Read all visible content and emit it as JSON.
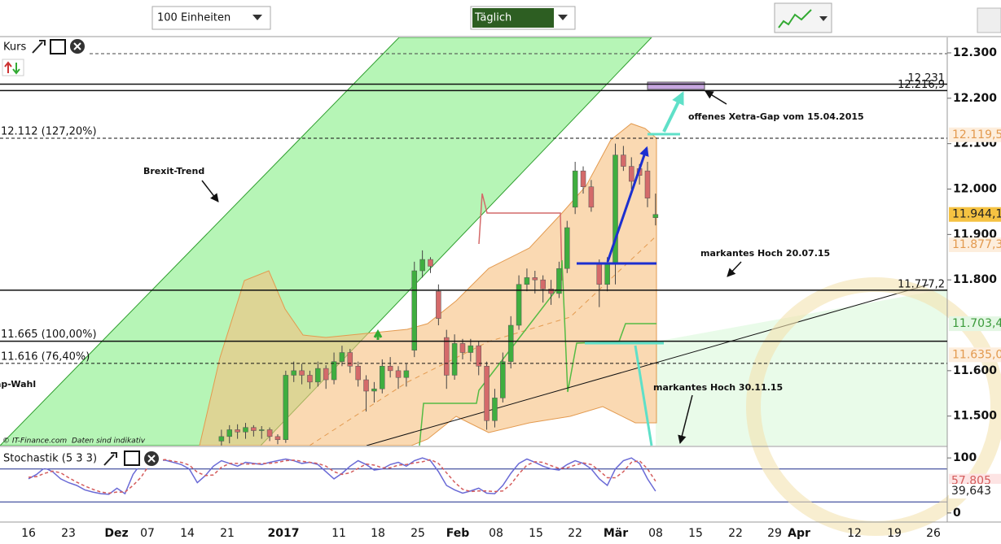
{
  "toolbar": {
    "units": "100 Einheiten",
    "interval": "Täglich"
  },
  "footer": {
    "copyright": "© IT-Finance.com",
    "disclaimer": "Daten sind indikativ"
  },
  "chart_data": [
    {
      "type": "candlestick",
      "pane_label": "Kurs",
      "up_color": "#3fae3f",
      "down_color": "#d46a6a",
      "ylim": [
        11435,
        12334
      ],
      "yticks": [
        {
          "value": 12300,
          "label": "12.300"
        },
        {
          "value": 12200,
          "label": "12.200"
        },
        {
          "value": 12100,
          "label": "12.100"
        },
        {
          "value": 12000,
          "label": "12.000"
        },
        {
          "value": 11900,
          "label": "11.900"
        },
        {
          "value": 11800,
          "label": "11.800"
        },
        {
          "value": 11600,
          "label": "11.600"
        },
        {
          "value": 11500,
          "label": "11.500"
        }
      ],
      "xtick_labels": [
        "16",
        "23",
        "Dez",
        "07",
        "14",
        "21",
        "2017",
        "11",
        "18",
        "25",
        "Feb",
        "08",
        "15",
        "22",
        "Mär",
        "08",
        "15",
        "22",
        "29",
        "Apr",
        "12",
        "19",
        "26"
      ],
      "open": [
        11445,
        11455,
        11470,
        11465,
        11475,
        11468,
        11470,
        11455,
        11448,
        11590,
        11600,
        11590,
        11575,
        11605,
        11580,
        11620,
        11640,
        11610,
        11580,
        11555,
        11560,
        11610,
        11600,
        11585,
        11645,
        11820,
        11845,
        11775,
        11673,
        11590,
        11660,
        11640,
        11655,
        11610,
        11490,
        11540,
        11620,
        11700,
        11790,
        11805,
        11800,
        11780,
        11770,
        11825,
        11960,
        12040,
        12005,
        11835,
        11790,
        11835,
        12075,
        12050,
        12045,
        12040,
        11937
      ],
      "high": [
        11470,
        11480,
        11482,
        11485,
        11480,
        11478,
        11475,
        11460,
        11600,
        11620,
        11615,
        11600,
        11620,
        11612,
        11640,
        11655,
        11648,
        11620,
        11590,
        11575,
        11625,
        11630,
        11610,
        11615,
        11840,
        11865,
        11850,
        11790,
        11690,
        11680,
        11670,
        11670,
        11665,
        11620,
        11560,
        11640,
        11720,
        11810,
        11825,
        11820,
        11810,
        11800,
        11840,
        11930,
        12060,
        12050,
        12020,
        11845,
        11850,
        12100,
        12095,
        12070,
        12055,
        12060,
        11990
      ],
      "low": [
        11435,
        11440,
        11450,
        11450,
        11455,
        11450,
        11445,
        11438,
        11441,
        11575,
        11570,
        11560,
        11565,
        11560,
        11570,
        11610,
        11595,
        11565,
        11510,
        11530,
        11550,
        11585,
        11560,
        11565,
        11630,
        11805,
        11815,
        11700,
        11560,
        11580,
        11625,
        11620,
        11590,
        11470,
        11475,
        11530,
        11605,
        11690,
        11775,
        11770,
        11750,
        11745,
        11760,
        11815,
        11945,
        11990,
        11950,
        11740,
        11775,
        11790,
        12040,
        12000,
        12010,
        11960,
        11920
      ],
      "close": [
        11455,
        11470,
        11465,
        11475,
        11468,
        11470,
        11455,
        11448,
        11590,
        11600,
        11590,
        11575,
        11605,
        11580,
        11620,
        11640,
        11610,
        11580,
        11555,
        11560,
        11610,
        11600,
        11585,
        11600,
        11820,
        11845,
        11830,
        11715,
        11590,
        11660,
        11640,
        11655,
        11610,
        11490,
        11540,
        11620,
        11700,
        11790,
        11805,
        11800,
        11780,
        11770,
        11825,
        11915,
        12040,
        12005,
        11960,
        11790,
        11835,
        12075,
        12050,
        12017,
        12030,
        11980,
        11944.1
      ],
      "levels": [
        {
          "value": 12231,
          "label": "12.231",
          "side": "right",
          "dashed": false
        },
        {
          "value": 12216.9,
          "label": "12.216,9",
          "side": "right",
          "dashed": false
        },
        {
          "value": 12112,
          "label": "12.112 (127,20%)",
          "side": "left",
          "dashed": true
        },
        {
          "value": 11777.2,
          "label": "11.777,2",
          "side": "right",
          "dashed": false
        },
        {
          "value": 11665,
          "label": "11.665 (100,00%)",
          "side": "left",
          "dashed": false
        },
        {
          "value": 11616,
          "label": "11.616 (76,40%)",
          "side": "left",
          "dashed": true
        }
      ],
      "value_boxes": [
        {
          "value": 12119.5,
          "label": "12.119,5",
          "color": "#e39a4f",
          "bg": "#fdeedd"
        },
        {
          "value": 11944.1,
          "label": "11.944,1",
          "color": "#222222",
          "bg": "#f5c242"
        },
        {
          "value": 11877.3,
          "label": "11.877,3",
          "color": "#e39a4f",
          "bg": "#fdeedd"
        },
        {
          "value": 11703.4,
          "label": "11.703,4",
          "color": "#3a9a3a",
          "bg": "#e4f7e4"
        },
        {
          "value": 11635,
          "label": "11.635,0",
          "color": "#e39a4f",
          "bg": "#fdeedd"
        }
      ],
      "annotations": [
        "Brexit-Trend",
        "offenes Xetra-Gap vom 15.04.2015",
        "markantes Hoch 20.07.15",
        "markantes Hoch 30.11.15",
        "ap-Wahl"
      ]
    },
    {
      "type": "line",
      "pane_label": "Stochastik (5 3 3)",
      "ylim": [
        -15,
        115
      ],
      "yticks": [
        100,
        0
      ],
      "hlines": [
        80,
        20
      ],
      "series": [
        {
          "color": "#6a6ad6",
          "dashed": false,
          "values": [
            62,
            70,
            82,
            75,
            62,
            55,
            50,
            42,
            38,
            35,
            34,
            45,
            35,
            70,
            90,
            100,
            95,
            96,
            92,
            88,
            80,
            55,
            68,
            85,
            95,
            90,
            85,
            92,
            90,
            88,
            92,
            95,
            98,
            95,
            90,
            92,
            88,
            75,
            62,
            72,
            85,
            95,
            88,
            78,
            80,
            88,
            92,
            85,
            95,
            100,
            95,
            75,
            50,
            42,
            36,
            40,
            45,
            36,
            35,
            50,
            72,
            90,
            98,
            92,
            85,
            80,
            78,
            88,
            95,
            90,
            80,
            62,
            50,
            80,
            95,
            100,
            90,
            62,
            39.643
          ]
        },
        {
          "color": "#d45c5c",
          "dashed": true,
          "values": [
            65,
            66,
            72,
            76,
            73,
            64,
            56,
            49,
            43,
            38,
            36,
            38,
            38,
            50,
            65,
            87,
            95,
            97,
            94,
            92,
            87,
            74,
            68,
            69,
            83,
            90,
            90,
            89,
            89,
            90,
            90,
            92,
            95,
            96,
            94,
            92,
            90,
            85,
            75,
            70,
            73,
            81,
            89,
            87,
            82,
            82,
            87,
            88,
            91,
            93,
            97,
            90,
            73,
            56,
            43,
            39,
            40,
            40,
            39,
            40,
            52,
            71,
            87,
            93,
            92,
            86,
            81,
            82,
            87,
            91,
            88,
            77,
            64,
            64,
            75,
            92,
            95,
            80,
            57.805
          ]
        }
      ],
      "value_boxes": [
        {
          "value": 57.805,
          "label": "57,805",
          "color": "#d45c5c",
          "bg": "#fde4e4"
        },
        {
          "value": 39.643,
          "label": "39,643",
          "color": "#222222",
          "bg": "#ffffff"
        }
      ]
    }
  ]
}
